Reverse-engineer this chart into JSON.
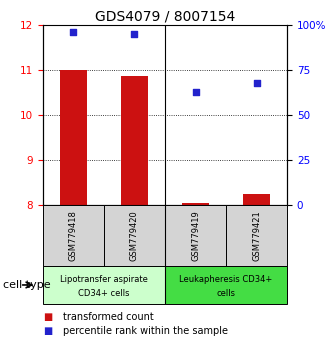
{
  "title": "GDS4079 / 8007154",
  "samples": [
    "GSM779418",
    "GSM779420",
    "GSM779419",
    "GSM779421"
  ],
  "transformed_counts": [
    11.0,
    10.87,
    8.05,
    8.25
  ],
  "percentile_ranks": [
    96,
    95,
    63,
    68
  ],
  "ylim_left": [
    8,
    12
  ],
  "ylim_right": [
    0,
    100
  ],
  "yticks_left": [
    8,
    9,
    10,
    11,
    12
  ],
  "yticks_right": [
    0,
    25,
    50,
    75,
    100
  ],
  "ytick_labels_right": [
    "0",
    "25",
    "50",
    "75",
    "100%"
  ],
  "bar_color": "#cc1111",
  "dot_color": "#2222cc",
  "group0_color": "#ccffcc",
  "group1_color": "#44dd44",
  "group0_label_line1": "Lipotransfer aspirate",
  "group0_label_line2": "CD34+ cells",
  "group1_label_line1": "Leukapheresis CD34+",
  "group1_label_line2": "cells",
  "cell_type_label": "cell type",
  "legend_bar_label": "transformed count",
  "legend_dot_label": "percentile rank within the sample",
  "bar_width": 0.45,
  "dotted_yticks": [
    9,
    10,
    11
  ],
  "title_fontsize": 10,
  "tick_fontsize": 7.5,
  "sample_fontsize": 6,
  "group_fontsize": 6,
  "legend_fontsize": 7,
  "cell_type_fontsize": 8
}
